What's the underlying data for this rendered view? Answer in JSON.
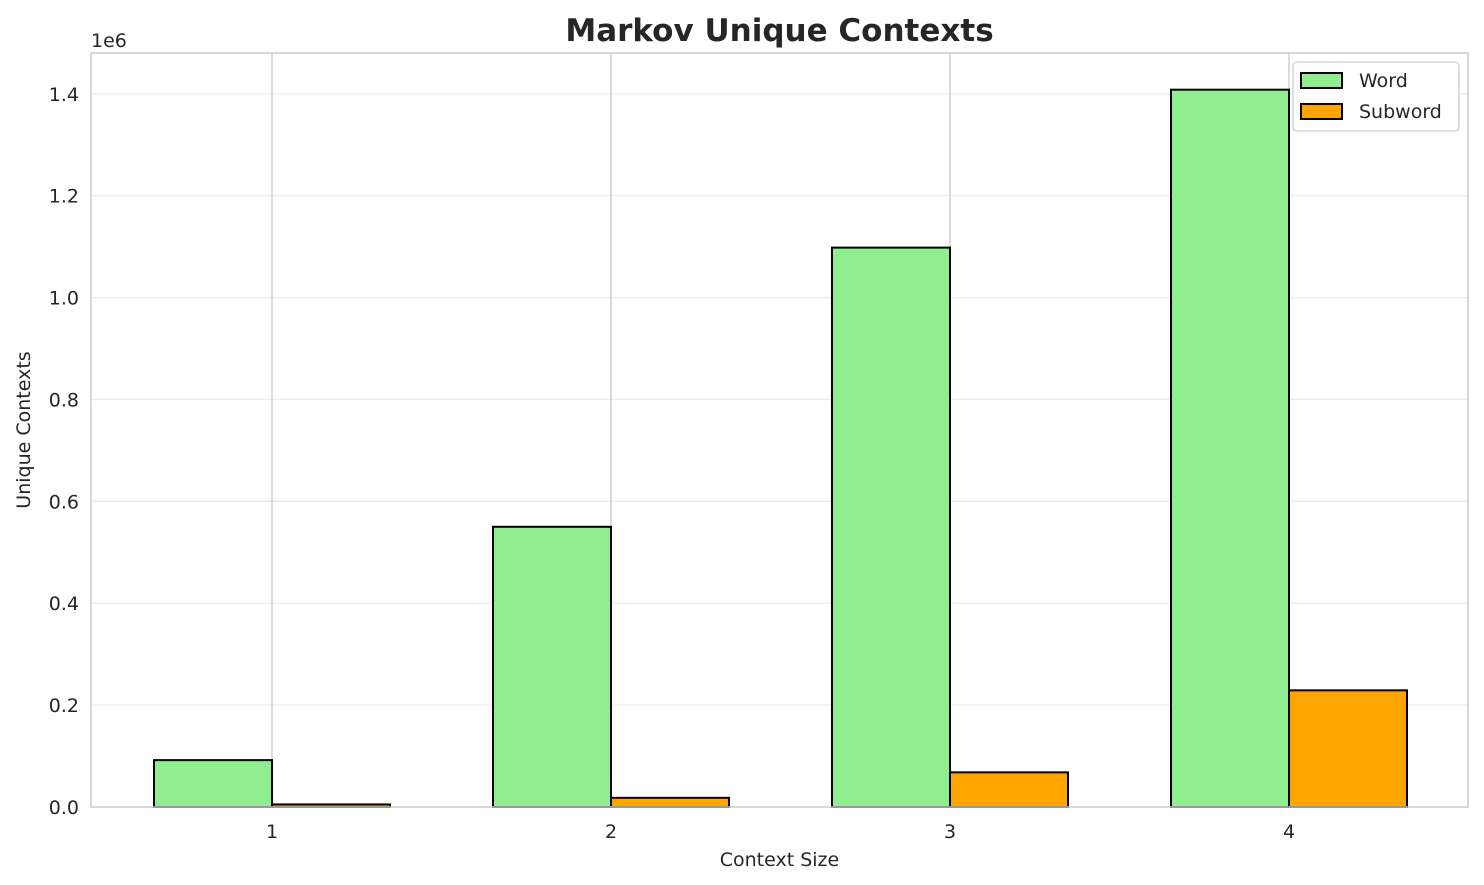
{
  "chart_data": {
    "type": "bar",
    "title": "Markov Unique Contexts",
    "xlabel": "Context Size",
    "ylabel": "Unique Contexts",
    "y_multiplier_label": "1e6",
    "categories": [
      "1",
      "2",
      "3",
      "4"
    ],
    "series": [
      {
        "name": "Word",
        "color": "#90ee90",
        "values": [
          92000,
          550000,
          1098000,
          1408000
        ]
      },
      {
        "name": "Subword",
        "color": "#ffa500",
        "values": [
          5000,
          18000,
          68000,
          229000
        ]
      }
    ],
    "ylim": [
      0,
      1480000
    ],
    "yticks": [
      {
        "value": 0,
        "label": "0.0"
      },
      {
        "value": 200000,
        "label": "0.2"
      },
      {
        "value": 400000,
        "label": "0.4"
      },
      {
        "value": 600000,
        "label": "0.6"
      },
      {
        "value": 800000,
        "label": "0.8"
      },
      {
        "value": 1000000,
        "label": "1.0"
      },
      {
        "value": 1200000,
        "label": "1.2"
      },
      {
        "value": 1400000,
        "label": "1.4"
      }
    ],
    "grid": true,
    "legend_position": "top-right",
    "bar_edge_color": "#000000"
  }
}
